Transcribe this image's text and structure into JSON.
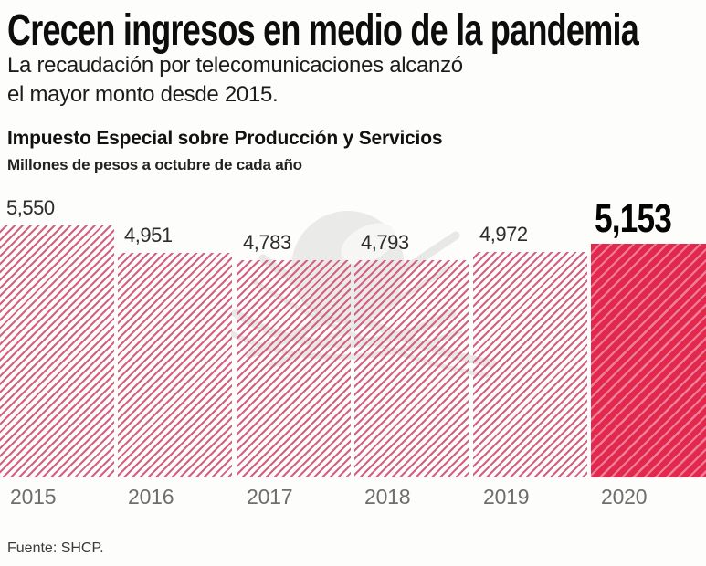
{
  "header": {
    "title": "Crecen ingresos en medio de la pandemia",
    "subtitle_line1": "La recaudación por telecomunicaciones alcanzó",
    "subtitle_line2": "el mayor monto desde 2015."
  },
  "chart_data": {
    "type": "bar",
    "title": "Impuesto Especial sobre Producción y Servicios",
    "subtitle": "Millones de pesos a octubre de cada año",
    "categories": [
      "2015",
      "2016",
      "2017",
      "2018",
      "2019",
      "2020"
    ],
    "values": [
      5550,
      4951,
      4783,
      4793,
      4972,
      5153
    ],
    "value_labels": [
      "5,550",
      "4,951",
      "4,783",
      "4,793",
      "4,972",
      "5,153"
    ],
    "highlight_index": 5,
    "ylim": [
      0,
      5550
    ],
    "grid": false,
    "legend_position": "none",
    "colors": {
      "hatch_stripe": "#d4617f",
      "solid_bar": "#e2294d",
      "solid_stripe": "#ee7f99",
      "value_label": "#2d2d2d",
      "highlight_label": "#050505",
      "year_label": "#6e6e6e"
    }
  },
  "watermark": {
    "icon": "winged-ball-watermark"
  },
  "footer": {
    "source": "Fuente: SHCP."
  }
}
